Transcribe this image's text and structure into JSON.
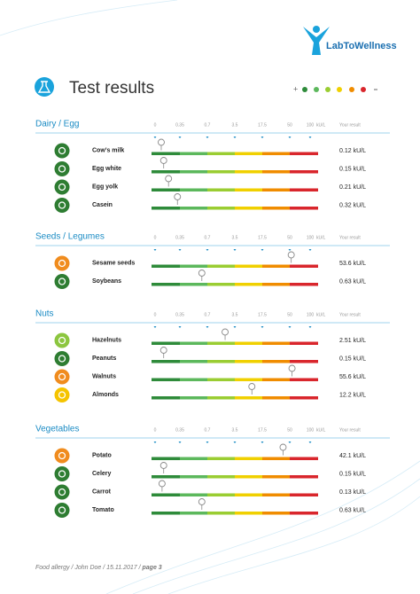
{
  "brand": "LabToWellness",
  "title": "Test results",
  "scale": {
    "ticks": [
      0,
      0.35,
      0.7,
      3.5,
      17.5,
      50,
      100
    ],
    "unit": "kU/L",
    "result_header": "Your result"
  },
  "sections": [
    {
      "title": "Dairy / Egg",
      "items": [
        {
          "name": "Cow’s milk",
          "value": 0.12,
          "label": "0.12 kU/L",
          "icon_color": "#2e7d32"
        },
        {
          "name": "Egg white",
          "value": 0.15,
          "label": "0.15 kU/L",
          "icon_color": "#2e7d32"
        },
        {
          "name": "Egg yolk",
          "value": 0.21,
          "label": "0.21 kU/L",
          "icon_color": "#2e7d32"
        },
        {
          "name": "Casein",
          "value": 0.32,
          "label": "0.32 kU/L",
          "icon_color": "#2e7d32"
        }
      ]
    },
    {
      "title": "Seeds / Legumes",
      "items": [
        {
          "name": "Sesame seeds",
          "value": 53.6,
          "label": "53.6 kU/L",
          "icon_color": "#f08c1e"
        },
        {
          "name": "Soybeans",
          "value": 0.63,
          "label": "0.63 kU/L",
          "icon_color": "#2e7d32"
        }
      ]
    },
    {
      "title": "Nuts",
      "items": [
        {
          "name": "Hazelnuts",
          "value": 2.51,
          "label": "2.51 kU/L",
          "icon_color": "#8cc63f"
        },
        {
          "name": "Peanuts",
          "value": 0.15,
          "label": "0.15 kU/L",
          "icon_color": "#2e7d32"
        },
        {
          "name": "Walnuts",
          "value": 55.6,
          "label": "55.6 kU/L",
          "icon_color": "#f08c1e"
        },
        {
          "name": "Almonds",
          "value": 12.2,
          "label": "12.2 kU/L",
          "icon_color": "#f5c400"
        }
      ]
    },
    {
      "title": "Vegetables",
      "items": [
        {
          "name": "Potato",
          "value": 42.1,
          "label": "42.1 kU/L",
          "icon_color": "#f08c1e"
        },
        {
          "name": "Celery",
          "value": 0.15,
          "label": "0.15 kU/L",
          "icon_color": "#2e7d32"
        },
        {
          "name": "Carrot",
          "value": 0.13,
          "label": "0.13 kU/L",
          "icon_color": "#2e7d32"
        },
        {
          "name": "Tomato",
          "value": 0.63,
          "label": "0.63 kU/L",
          "icon_color": "#2e7d32"
        }
      ]
    }
  ],
  "footer": {
    "text": "Food allergy / John Doe / 15.11.2017 / ",
    "page": "page 3"
  }
}
